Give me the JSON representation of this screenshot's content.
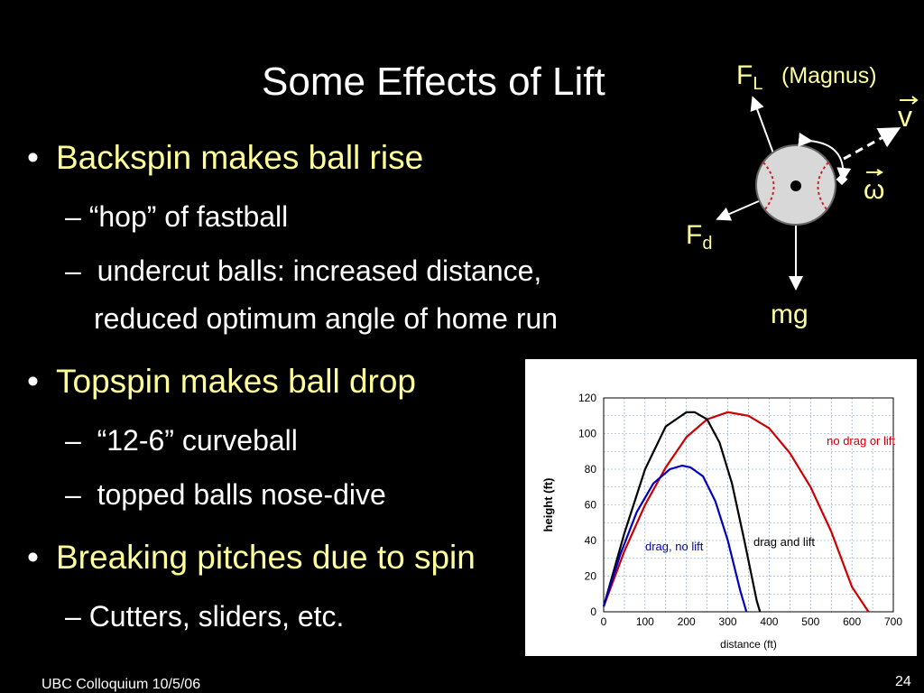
{
  "slide": {
    "title": "Some Effects of Lift",
    "footer_left": "UBC Colloquium 10/5/06",
    "page_number": "24"
  },
  "bullets": [
    {
      "text": "Backspin makes ball rise",
      "subs": [
        "“hop” of fastball",
        "undercut balls:  increased distance,",
        "reduced optimum angle of home run"
      ]
    },
    {
      "text": "Topspin makes ball drop",
      "subs": [
        "“12-6” curveball",
        "topped balls nose-dive"
      ]
    },
    {
      "text": "Breaking pitches due to spin",
      "subs": [
        "Cutters, sliders, etc."
      ]
    }
  ],
  "diagram": {
    "lift_label": "F",
    "lift_sub": "L",
    "magnus_label": "(Magnus)",
    "velocity_label": "v",
    "omega_label": "ω",
    "drag_label": "F",
    "drag_sub": "d",
    "gravity_label": "mg"
  },
  "chart_data": {
    "type": "line",
    "xlabel": "distance (ft)",
    "ylabel": "height (ft)",
    "xlim": [
      0,
      700
    ],
    "ylim": [
      0,
      120
    ],
    "xticks": [
      0,
      100,
      200,
      300,
      400,
      500,
      600,
      700
    ],
    "yticks": [
      0,
      20,
      40,
      60,
      80,
      100,
      120
    ],
    "grid": true,
    "series": [
      {
        "name": "no drag or lift",
        "color": "#cc0000",
        "x": [
          0,
          50,
          100,
          150,
          200,
          250,
          300,
          350,
          400,
          450,
          500,
          550,
          600,
          640
        ],
        "y": [
          3,
          34,
          60,
          81,
          98,
          108,
          112,
          110,
          103,
          89,
          70,
          45,
          14,
          0
        ]
      },
      {
        "name": "drag and lift",
        "color": "#000000",
        "x": [
          0,
          50,
          100,
          150,
          200,
          220,
          250,
          280,
          310,
          340,
          370,
          378
        ],
        "y": [
          3,
          44,
          80,
          104,
          112,
          112,
          108,
          95,
          72,
          40,
          6,
          0
        ]
      },
      {
        "name": "drag, no lift",
        "color": "#0000bb",
        "x": [
          0,
          40,
          80,
          120,
          160,
          190,
          210,
          240,
          270,
          300,
          330,
          345
        ],
        "y": [
          3,
          32,
          56,
          72,
          80,
          82,
          81,
          76,
          62,
          40,
          12,
          0
        ]
      }
    ]
  }
}
